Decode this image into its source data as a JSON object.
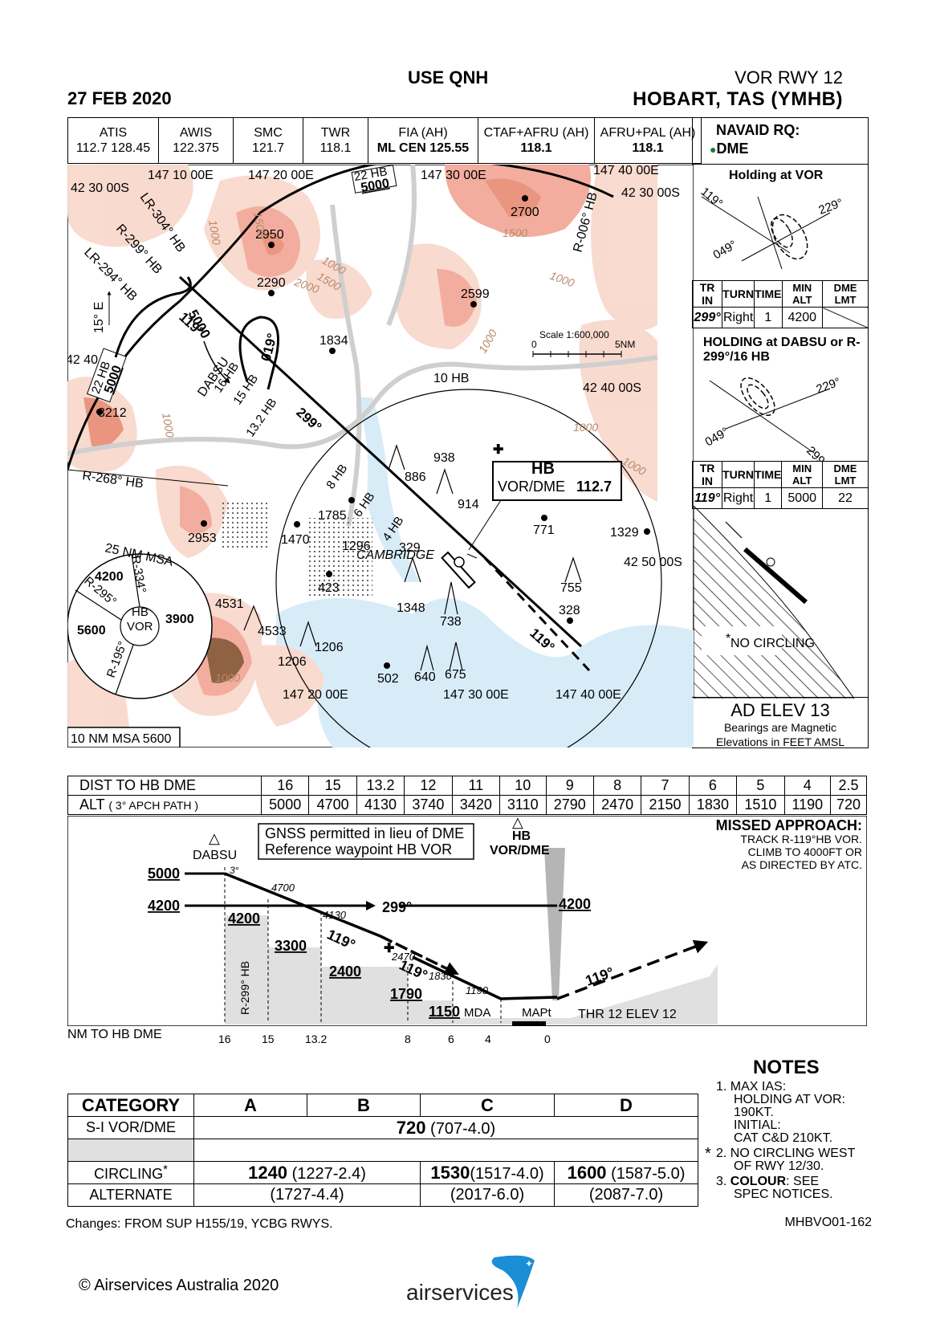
{
  "header": {
    "date": "27 FEB 2020",
    "use_qnh": "USE QNH",
    "procedure": "VOR RWY 12",
    "airport": "HOBART, TAS (YMHB)"
  },
  "frequencies": [
    {
      "name": "ATIS",
      "value": "112.7  128.45"
    },
    {
      "name": "AWIS",
      "value": "122.375"
    },
    {
      "name": "SMC",
      "value": "121.7"
    },
    {
      "name": "TWR",
      "value": "118.1"
    },
    {
      "name": "FIA (AH)",
      "value": "ML CEN  125.55"
    },
    {
      "name": "CTAF+AFRU (AH)",
      "value": "118.1"
    },
    {
      "name": "AFRU+PAL (AH)",
      "value": "118.1"
    }
  ],
  "navaid": {
    "label": "NAVAID RQ:",
    "value": "DME"
  },
  "holding_vor": {
    "title": "Holding at VOR",
    "b1": "119°",
    "b2": "229°",
    "b3": "049°",
    "headers": [
      "TR IN",
      "TURN",
      "TIME",
      "MIN ALT",
      "DME LMT"
    ],
    "row": [
      "299°",
      "Right",
      "1",
      "4200",
      ""
    ]
  },
  "holding_dabsu": {
    "title": "HOLDING at DABSU or R-299°/16 HB",
    "b1": "229°",
    "b2": "049°",
    "b3": "299°",
    "headers": [
      "TR IN",
      "TURN",
      "TIME",
      "MIN ALT",
      "DME LMT"
    ],
    "row": [
      "119°",
      "Right",
      "1",
      "5000",
      "22"
    ]
  },
  "circling_note": "NO CIRCLING",
  "ad_elev": "AD ELEV 13",
  "bearing_note": "Bearings are Magnetic",
  "elev_note": "Elevations in FEET AMSL",
  "map": {
    "coords": {
      "c1": "147 10 00E",
      "c2": "147 20 00E",
      "c3": "147 30 00E",
      "c4": "147 40 00E",
      "c5": "147 20 00E",
      "c6": "147 30 00E",
      "c7": "147 40 00E",
      "l1": "42 30 00S",
      "l2": "42 30 00S",
      "l3": "42 40 00S",
      "l4": "42 40 00S",
      "l5": "42 50 00S"
    },
    "radials": {
      "lr304": "LR-304° HB",
      "r299": "R-299° HB",
      "lr294": "LR-294° HB",
      "r006": "R-006° HB",
      "r268": "R-268° HB",
      "var": "15° E"
    },
    "arc_top": "22 HB",
    "arc_top_alt": "5000",
    "arc_left": "22 HB",
    "arc_left_alt": "5000",
    "trk_alt": "5000",
    "trk": "119°",
    "hold_inbound": "019°",
    "dabsu": "DABSU",
    "dabsu_dist": "16 HB",
    "d15": "15 HB",
    "d132": "13.2 HB",
    "trk299": "299°",
    "d10": "10 HB",
    "d8": "8 HB",
    "d6": "6 HB",
    "d4": "4 HB",
    "trk119": "119°",
    "vor_id": "HB",
    "vor_name": "VOR/DME",
    "vor_freq": "112.7",
    "scale_label": "Scale 1:600,000",
    "scale_0": "0",
    "scale_5": "5NM",
    "city": "CAMBRIDGE",
    "spots": {
      "s2950": "2950",
      "s2700": "2700",
      "s2290": "2290",
      "s2599": "2599",
      "s1834": "1834",
      "s3212": "3212",
      "s938": "938",
      "s886": "886",
      "s914": "914",
      "s1785": "1785",
      "s771": "771",
      "s1329": "1329",
      "s2953": "2953",
      "s1470": "1470",
      "s1296": "1296",
      "s329": "329",
      "s423": "423",
      "s755": "755",
      "s1348": "1348",
      "s328": "328",
      "s738": "738",
      "s4531": "4531",
      "s4533": "4533",
      "s1206a": "1206",
      "s1206b": "1206",
      "s502": "502",
      "s640": "640",
      "s675": "675"
    },
    "contours": {
      "c1": "1000",
      "c2": "1500",
      "c3": "1000",
      "c4": "1500",
      "c5": "1000",
      "c6": "2000",
      "c7": "1500",
      "c8": "1000",
      "c9": "1000",
      "c10": "1000",
      "c11": "1000",
      "c12": "1000"
    }
  },
  "msa": {
    "title": "25 NM MSA",
    "inner": "HB",
    "inner2": "VOR",
    "s1": "4200",
    "s2": "3900",
    "s3": "5600",
    "r1": "R-334°",
    "r2": "R-295°",
    "r3": "R-195°",
    "ten_nm": "10 NM MSA 5600"
  },
  "dist_table": {
    "dist_label": "DIST TO HB DME",
    "alt_label": "ALT",
    "alt_sub": "( 3° APCH PATH )",
    "dist": [
      "16",
      "15",
      "13.2",
      "12",
      "11",
      "10",
      "9",
      "8",
      "7",
      "6",
      "5",
      "4",
      "2.5"
    ],
    "alt": [
      "5000",
      "4700",
      "4130",
      "3740",
      "3420",
      "3110",
      "2790",
      "2470",
      "2150",
      "1830",
      "1510",
      "1190",
      "720"
    ]
  },
  "profile": {
    "gnss1": "GNSS permitted in lieu of DME",
    "gnss2": "Reference waypoint HB VOR",
    "dabsu": "DABSU",
    "hb": "HB",
    "vordme": "VOR/DME",
    "ma_title": "MISSED APPROACH:",
    "ma1": "TRACK R-119°HB VOR.",
    "ma2": "CLIMB TO 4000FT OR",
    "ma3": "AS DIRECTED BY ATC.",
    "a5000": "5000",
    "a4200": "4200",
    "a4200r": "4200",
    "trk299": "299°",
    "ang": "3°",
    "p4700": "4700",
    "p4130": "4130",
    "s4200": "4200",
    "s3300": "3300",
    "s2400": "2400",
    "s1790": "1790",
    "s1150": "1150",
    "p2470": "2470",
    "p1830": "1830",
    "p1190": "1190",
    "t119a": "119°",
    "t119b": "119°",
    "t119c": "119°",
    "r299": "R-299° HB",
    "mda": "MDA",
    "mapt": "MAPt",
    "thr": "THR 12 ELEV 12",
    "nm_label": "NM TO HB DME",
    "ticks": [
      "16",
      "15",
      "13.2",
      "8",
      "6",
      "4",
      "0"
    ]
  },
  "minima": {
    "headers": [
      "CATEGORY",
      "A",
      "B",
      "C",
      "D"
    ],
    "si_label": "S-I  VOR/DME",
    "si_bold": "720",
    "si_rest": " (707-4.0)",
    "circ_label": "CIRCLING",
    "circ_star": "*",
    "circ_ab_b": "1240",
    "circ_ab": "  (1227-2.4)",
    "circ_c_b": "1530",
    "circ_c": "(1517-4.0)",
    "circ_d_b": "1600",
    "circ_d": " (1587-5.0)",
    "alt_label": "ALTERNATE",
    "alt_ab": "(1727-4.4)",
    "alt_c": "(2017-6.0)",
    "alt_d": "(2087-7.0)"
  },
  "notes": {
    "title": "NOTES",
    "n1": "1. MAX IAS:",
    "n1a": "HOLDING AT VOR:",
    "n1b": "190KT.",
    "n1c": "INITIAL:",
    "n1d": "CAT C&D 210KT.",
    "n2": "2. NO CIRCLING WEST",
    "n2a": "OF  RWY 12/30.",
    "star": "*",
    "n3": "3.",
    "n3b": "COLOUR",
    "n3c": ": SEE",
    "n3d": "SPEC NOTICES."
  },
  "footer": {
    "changes": "Changes: FROM SUP H155/19, YCBG RWYS.",
    "code": "MHBVO01-162",
    "copyright": "© Airservices Australia 2020",
    "brand": "airservices"
  },
  "colors": {
    "terrain_light": "#f9d9cc",
    "terrain_mid": "#f2a99a",
    "terrain_high": "#e8907a",
    "terrain_peak": "#8a5a3a",
    "water": "#d8ecf8",
    "road": "#dcdcdc"
  }
}
